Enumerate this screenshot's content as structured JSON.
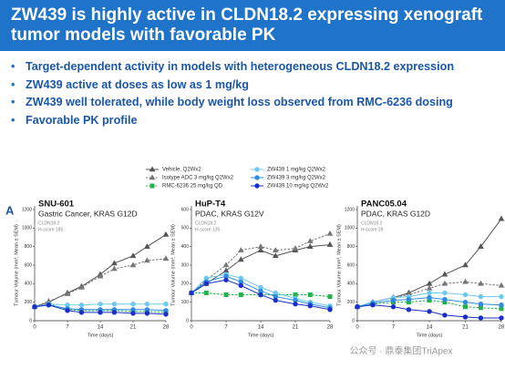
{
  "header": {
    "title": "ZW439 is highly active in CLDN18.2 expressing xenograft tumor models with favorable PK"
  },
  "bullets": [
    "Target-dependent activity in models with heterogeneous CLDN18.2 expression",
    "ZW439 active at doses as low as 1 mg/kg",
    "ZW439 well tolerated, while body weight loss observed from RMC-6236 dosing",
    "Favorable PK profile"
  ],
  "panel_letter": "A",
  "watermark": "公众号 · 鼎泰集团TriApex",
  "chart_data": [
    {
      "type": "line",
      "title": "SNU-601",
      "subtitle": "Gastric Cancer, KRAS G12D",
      "annotations": [
        "CLDN18.2",
        "H-score 185"
      ],
      "x_label": "Time (days)",
      "y_label": "Tumour Volume (mm³, Mean ± SEM)",
      "x": [
        0,
        3,
        7,
        10,
        14,
        17,
        21,
        24,
        28
      ],
      "xlim": [
        0,
        28
      ],
      "xticks": [
        0,
        7,
        14,
        21,
        28
      ],
      "ylim": [
        0,
        1200
      ],
      "yticks": [
        0,
        200,
        400,
        600,
        800,
        1000,
        1200
      ],
      "series": [
        {
          "name": "Vehicle, Q2Wx2",
          "color": "#555555",
          "marker": "triangle",
          "dashed": false,
          "values": [
            150,
            200,
            300,
            370,
            500,
            620,
            700,
            800,
            930
          ]
        },
        {
          "name": "Isotype ADC 3 mg/kg Q2Wx2",
          "color": "#777777",
          "marker": "triangle",
          "dashed": true,
          "values": [
            150,
            210,
            290,
            360,
            480,
            560,
            600,
            650,
            670
          ]
        },
        {
          "name": "RMC-6236 25 mg/kg QD",
          "color": "#22b14c",
          "marker": "square",
          "dashed": true,
          "values": [
            150,
            180,
            120,
            110,
            110,
            110,
            100,
            100,
            90
          ]
        },
        {
          "name": "ZW439 1 mg/kg Q2Wx2",
          "color": "#6fc8f0",
          "marker": "circle",
          "dashed": false,
          "values": [
            150,
            180,
            170,
            170,
            180,
            180,
            180,
            180,
            180
          ]
        },
        {
          "name": "ZW439 3 mg/kg Q2Wx2",
          "color": "#2e8be0",
          "marker": "circle",
          "dashed": false,
          "values": [
            150,
            170,
            130,
            120,
            120,
            120,
            120,
            120,
            110
          ]
        },
        {
          "name": "ZW439 10 mg/kg Q2Wx2",
          "color": "#1a2fc8",
          "marker": "circle",
          "dashed": false,
          "values": [
            150,
            170,
            110,
            90,
            90,
            90,
            80,
            80,
            70
          ]
        }
      ]
    },
    {
      "type": "line",
      "title": "HuP-T4",
      "subtitle": "PDAC, KRAS G12V",
      "annotations": [
        "CLDN18.2",
        "H-score 135"
      ],
      "x_label": "Time (days)",
      "y_label": "Tumour Volume (mm³, Mean ± SEM)",
      "x": [
        0,
        3,
        7,
        10,
        14,
        17,
        21,
        24,
        28
      ],
      "xlim": [
        0,
        28
      ],
      "xticks": [
        0,
        7,
        14,
        21,
        28
      ],
      "ylim": [
        0,
        600
      ],
      "yticks": [
        0,
        100,
        200,
        300,
        400,
        500,
        600
      ],
      "series": [
        {
          "name": "Vehicle, Q2Wx2",
          "color": "#555555",
          "marker": "triangle",
          "dashed": false,
          "values": [
            150,
            200,
            270,
            330,
            380,
            350,
            380,
            400,
            410
          ]
        },
        {
          "name": "Isotype ADC 3 mg/kg Q2Wx2",
          "color": "#777777",
          "marker": "triangle",
          "dashed": true,
          "values": [
            150,
            220,
            300,
            380,
            400,
            380,
            390,
            430,
            470
          ]
        },
        {
          "name": "RMC-6236 25 mg/kg QD",
          "color": "#22b14c",
          "marker": "square",
          "dashed": true,
          "values": [
            150,
            150,
            140,
            140,
            140,
            140,
            140,
            140,
            130
          ]
        },
        {
          "name": "ZW439 1 mg/kg Q2Wx2",
          "color": "#6fc8f0",
          "marker": "circle",
          "dashed": false,
          "values": [
            150,
            230,
            250,
            230,
            180,
            150,
            120,
            100,
            80
          ]
        },
        {
          "name": "ZW439 3 mg/kg Q2Wx2",
          "color": "#2e8be0",
          "marker": "circle",
          "dashed": false,
          "values": [
            150,
            210,
            240,
            210,
            160,
            130,
            110,
            90,
            70
          ]
        },
        {
          "name": "ZW439 10 mg/kg Q2Wx2",
          "color": "#1a2fc8",
          "marker": "circle",
          "dashed": false,
          "values": [
            150,
            200,
            220,
            190,
            140,
            110,
            90,
            80,
            60
          ]
        }
      ]
    },
    {
      "type": "line",
      "title": "PANC05.04",
      "subtitle": "PDAC, KRAS G12D",
      "annotations": [
        "CLDN18.2",
        "H-score 29"
      ],
      "x_label": "Time (days)",
      "y_label": "Tumour Volume (mm³, Mean ± SEM)",
      "x": [
        0,
        3,
        7,
        10,
        14,
        17,
        21,
        24,
        28
      ],
      "xlim": [
        0,
        28
      ],
      "xticks": [
        0,
        7,
        14,
        21,
        28
      ],
      "ylim": [
        0,
        1200
      ],
      "yticks": [
        0,
        200,
        400,
        600,
        800,
        1000,
        1200
      ],
      "series": [
        {
          "name": "Vehicle, Q2Wx2",
          "color": "#555555",
          "marker": "triangle",
          "dashed": false,
          "values": [
            150,
            200,
            250,
            300,
            400,
            500,
            600,
            800,
            1100
          ]
        },
        {
          "name": "Isotype ADC 3 mg/kg Q2Wx2",
          "color": "#777777",
          "marker": "triangle",
          "dashed": true,
          "values": [
            150,
            200,
            250,
            280,
            350,
            400,
            420,
            400,
            380
          ]
        },
        {
          "name": "RMC-6236 25 mg/kg QD",
          "color": "#22b14c",
          "marker": "square",
          "dashed": true,
          "values": [
            150,
            180,
            200,
            200,
            220,
            200,
            150,
            140,
            130
          ]
        },
        {
          "name": "ZW439 1 mg/kg Q2Wx2",
          "color": "#6fc8f0",
          "marker": "circle",
          "dashed": false,
          "values": [
            150,
            200,
            250,
            260,
            300,
            300,
            280,
            260,
            260
          ]
        },
        {
          "name": "ZW439 3 mg/kg Q2Wx2",
          "color": "#2e8be0",
          "marker": "circle",
          "dashed": false,
          "values": [
            150,
            190,
            220,
            230,
            250,
            230,
            200,
            180,
            170
          ]
        },
        {
          "name": "ZW439 10 mg/kg Q2Wx2",
          "color": "#1a2fc8",
          "marker": "circle",
          "dashed": false,
          "values": [
            150,
            170,
            150,
            120,
            100,
            60,
            40,
            30,
            30
          ]
        }
      ]
    }
  ]
}
